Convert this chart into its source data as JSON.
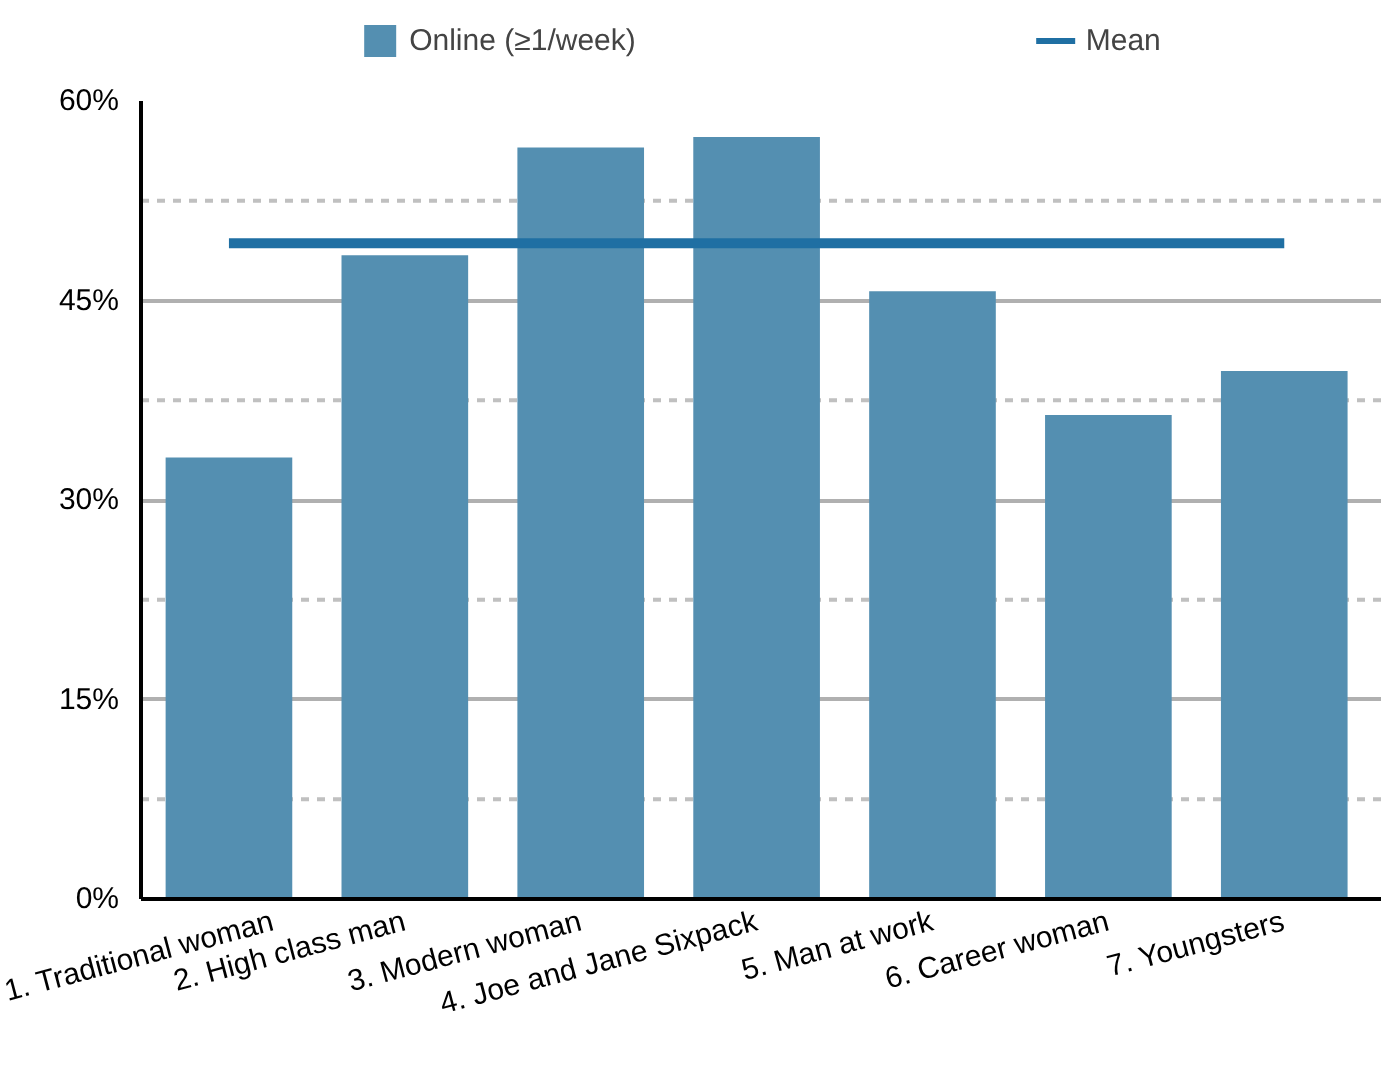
{
  "chart_data": {
    "type": "bar",
    "categories": [
      "1. Traditional woman",
      "2. High class man",
      "3. Modern woman",
      "4. Joe and Jane Sixpack",
      "5. Man at work",
      "6. Career woman",
      "7. Youngsters"
    ],
    "series": [
      {
        "name": "Online (≥1/week)",
        "color": "#548fb1",
        "values": [
          33.2,
          48.4,
          56.5,
          57.3,
          45.7,
          36.4,
          39.7
        ]
      }
    ],
    "ref_lines": [
      {
        "axis": "y",
        "value": 49.3,
        "label": "Mean",
        "color": "#1f6fa3",
        "line_style": "solid"
      }
    ],
    "ylim": [
      0,
      60
    ],
    "yticks": [
      {
        "value": 0,
        "label": "0%"
      },
      {
        "value": 7.5,
        "label": null
      },
      {
        "value": 15,
        "label": "15%"
      },
      {
        "value": 22.5,
        "label": null
      },
      {
        "value": 30,
        "label": "30%"
      },
      {
        "value": 37.5,
        "label": null
      },
      {
        "value": 45,
        "label": "45%"
      },
      {
        "value": 52.5,
        "label": null
      },
      {
        "value": 60,
        "label": "60%"
      }
    ],
    "grid": "y",
    "legend": "top"
  }
}
